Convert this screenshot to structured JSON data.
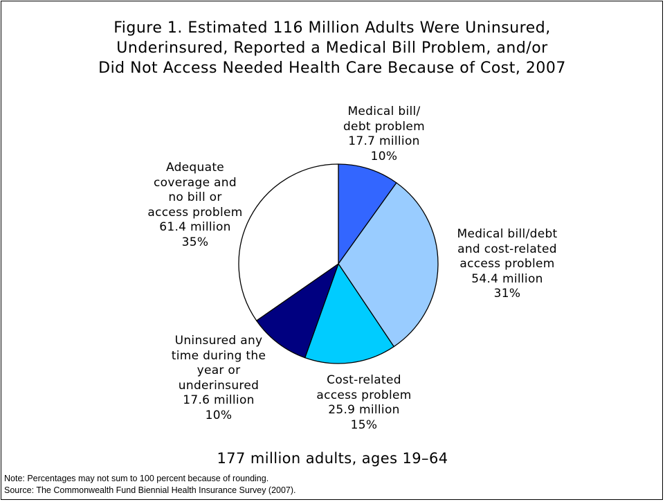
{
  "chart_data": {
    "type": "pie",
    "title": [
      "Figure 1. Estimated 116 Million Adults Were Uninsured,",
      "Underinsured, Reported a Medical Bill Problem, and/or",
      "Did Not Access Needed Health Care Because of Cost, 2007"
    ],
    "subtitle": "177 million adults, ages 19–64",
    "start_angle_deg": 0,
    "direction": "clockwise",
    "slices": [
      {
        "label": [
          "Medical bill/",
          "debt problem"
        ],
        "amount": "17.7 million",
        "percent_label": "10%",
        "value": 10,
        "color": "#3366ff"
      },
      {
        "label": [
          "Medical bill/debt",
          "and cost-related",
          "access problem"
        ],
        "amount": "54.4 million",
        "percent_label": "31%",
        "value": 31,
        "color": "#99ccff"
      },
      {
        "label": [
          "Cost-related",
          "access problem"
        ],
        "amount": "25.9 million",
        "percent_label": "15%",
        "value": 15,
        "color": "#00ccff"
      },
      {
        "label": [
          "Uninsured any",
          "time during the",
          "year or",
          "underinsured"
        ],
        "amount": "17.6 million",
        "percent_label": "10%",
        "value": 10,
        "color": "#000080"
      },
      {
        "label": [
          "Adequate",
          "coverage and",
          "no bill or",
          "access problem"
        ],
        "amount": "61.4 million",
        "percent_label": "35%",
        "value": 35,
        "color": "#ffffff"
      }
    ]
  },
  "footer": {
    "note": "Note: Percentages may not sum to 100 percent because of rounding.",
    "source": "Source: The Commonwealth Fund Biennial Health Insurance Survey (2007)."
  }
}
